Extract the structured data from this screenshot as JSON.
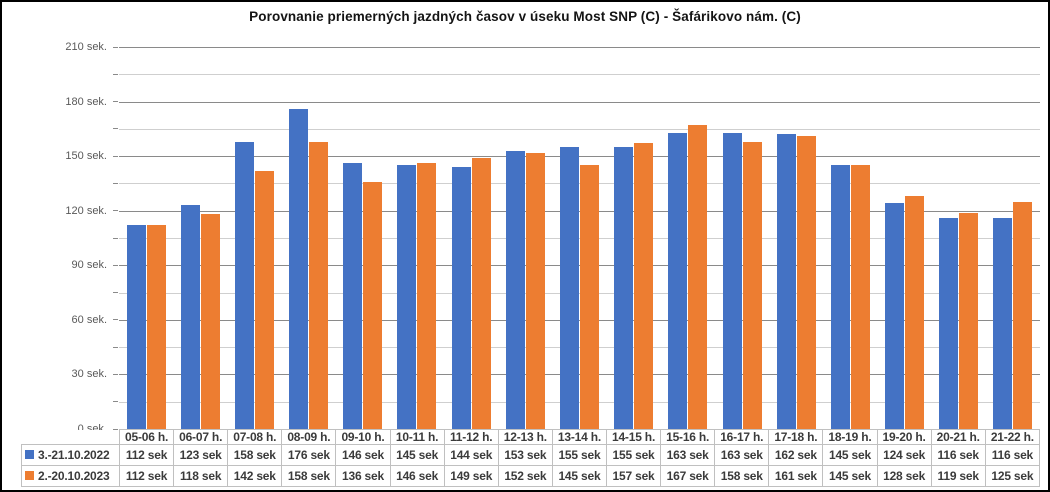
{
  "chart_data": {
    "type": "bar",
    "title": "Porovnanie priemerných jazdných časov v úseku Most SNP (C) - Šafárikovo nám. (C)",
    "categories": [
      "05-06 h.",
      "06-07 h.",
      "07-08 h.",
      "08-09 h.",
      "09-10 h.",
      "10-11 h.",
      "11-12 h.",
      "12-13 h.",
      "13-14 h.",
      "14-15 h.",
      "15-16 h.",
      "16-17 h.",
      "17-18 h.",
      "18-19 h.",
      "19-20 h.",
      "20-21 h.",
      "21-22 h."
    ],
    "series": [
      {
        "name": "3.-21.10.2022",
        "color": "#4472C4",
        "values": [
          112,
          123,
          158,
          176,
          146,
          145,
          144,
          153,
          155,
          155,
          163,
          163,
          162,
          145,
          124,
          116,
          116
        ]
      },
      {
        "name": "2.-20.10.2023",
        "color": "#ED7D31",
        "values": [
          112,
          118,
          142,
          158,
          136,
          146,
          149,
          152,
          145,
          157,
          167,
          158,
          161,
          145,
          128,
          119,
          125
        ]
      }
    ],
    "xlabel": "",
    "ylabel": "",
    "ylim": [
      0,
      210
    ],
    "ytick_step": 30,
    "yminor_step": 15,
    "ytick_labels": [
      "210 sek.",
      "180 sek.",
      "150 sek.",
      "120 sek.",
      "90 sek.",
      "60 sek.",
      "30 sek.",
      "0 sek."
    ],
    "value_suffix": " sek",
    "grid": true,
    "legend_position": "data-table-left"
  }
}
